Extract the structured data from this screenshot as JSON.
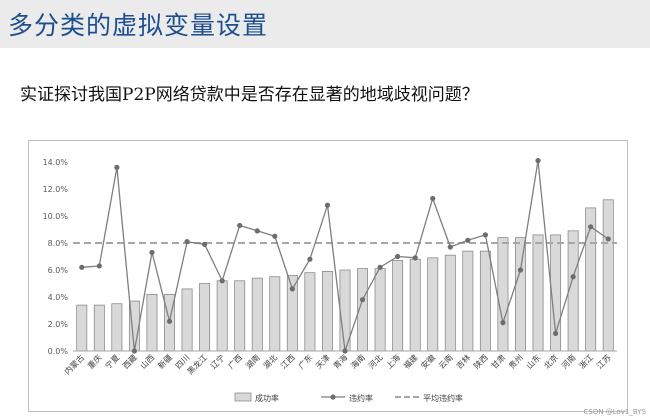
{
  "header": {
    "title": "多分类的虚拟变量设置"
  },
  "question": "实证探讨我国P2P网络贷款中是否存在显著的地域歧视问题？",
  "watermark": "CSDN @Lov1_BYS",
  "chart_data": {
    "type": "bar+line",
    "categories": [
      "内蒙古",
      "重庆",
      "宁夏",
      "西藏",
      "山西",
      "新疆",
      "四川",
      "黑龙江",
      "辽宁",
      "广西",
      "湖南",
      "湖北",
      "江西",
      "广东",
      "天津",
      "青海",
      "海南",
      "河北",
      "上海",
      "福建",
      "安徽",
      "云南",
      "吉林",
      "陕西",
      "甘肃",
      "贵州",
      "山东",
      "北京",
      "河南",
      "浙江",
      "江苏"
    ],
    "series": [
      {
        "name": "成功率",
        "kind": "bar",
        "color": "#d9d9d9",
        "values": [
          3.4,
          3.4,
          3.5,
          3.7,
          4.2,
          4.2,
          4.6,
          5.0,
          5.2,
          5.2,
          5.4,
          5.5,
          5.6,
          5.8,
          5.9,
          6.0,
          6.1,
          6.1,
          6.7,
          6.8,
          6.9,
          7.1,
          7.4,
          7.4,
          8.4,
          8.4,
          8.6,
          8.6,
          8.9,
          10.6,
          11.2
        ]
      },
      {
        "name": "违约率",
        "kind": "line",
        "color": "#7f7f7f",
        "values": [
          6.2,
          6.3,
          13.6,
          0.0,
          7.3,
          2.2,
          8.1,
          7.9,
          5.2,
          9.3,
          8.9,
          8.5,
          4.6,
          6.8,
          10.8,
          0.0,
          3.8,
          6.2,
          7.0,
          6.9,
          11.3,
          7.7,
          8.2,
          8.6,
          2.1,
          6.0,
          14.1,
          1.3,
          5.5,
          9.2,
          8.3
        ]
      },
      {
        "name": "平均违约率",
        "kind": "reference-line",
        "color": "#a6a6a6",
        "value": 8.0
      }
    ],
    "ylim": [
      0,
      14
    ],
    "yticks": [
      "0.0%",
      "2.0%",
      "4.0%",
      "6.0%",
      "8.0%",
      "10.0%",
      "12.0%",
      "14.0%"
    ],
    "ytick_values": [
      0,
      2,
      4,
      6,
      8,
      10,
      12,
      14
    ],
    "grid": false,
    "legend_position": "bottom"
  }
}
